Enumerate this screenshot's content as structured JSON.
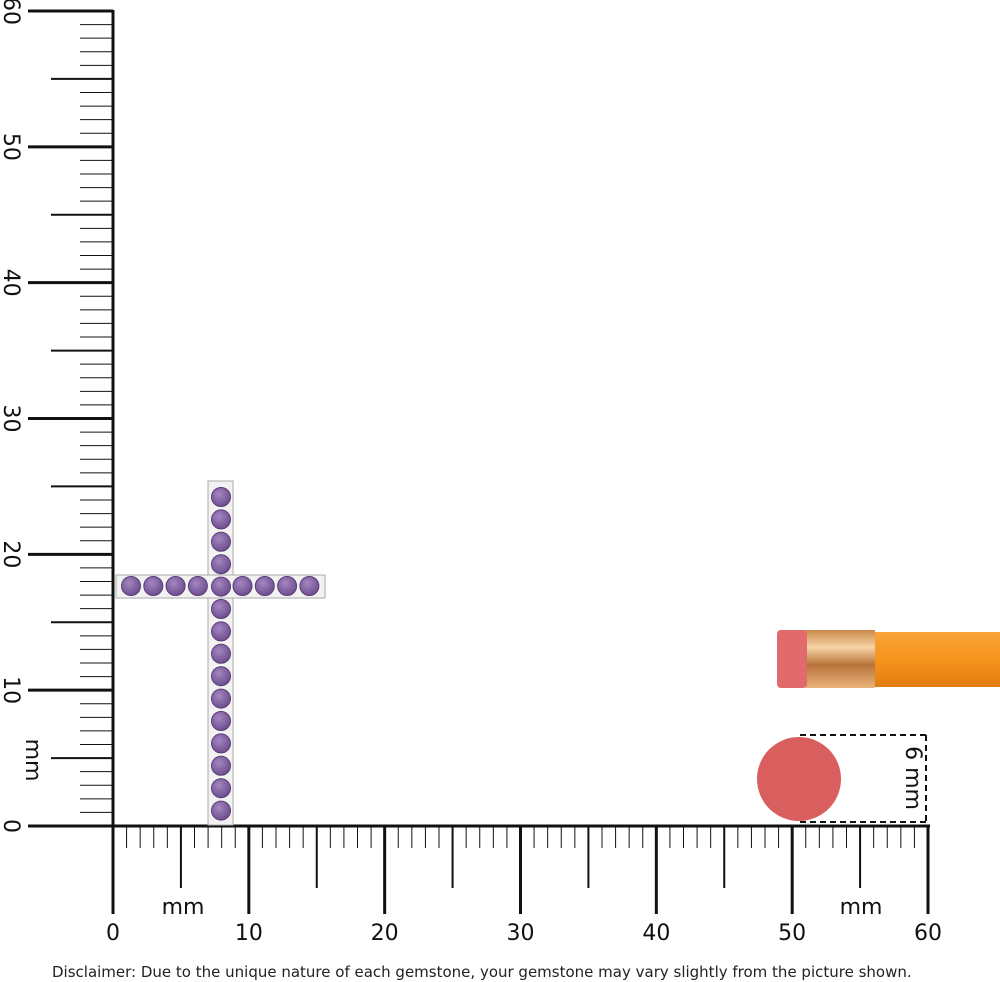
{
  "vertical_ruler": {
    "labels": [
      0,
      10,
      20,
      30,
      40,
      50,
      60
    ],
    "unit": "mm"
  },
  "horizontal_ruler": {
    "labels": [
      0,
      10,
      20,
      30,
      40,
      50,
      60
    ],
    "unit_left": "mm",
    "unit_right": "mm"
  },
  "size_marker": {
    "label": "6 mm"
  },
  "disclaimer": "Disclaimer: Due to the unique nature of each gemstone, your gemstone may vary slightly from the picture shown."
}
